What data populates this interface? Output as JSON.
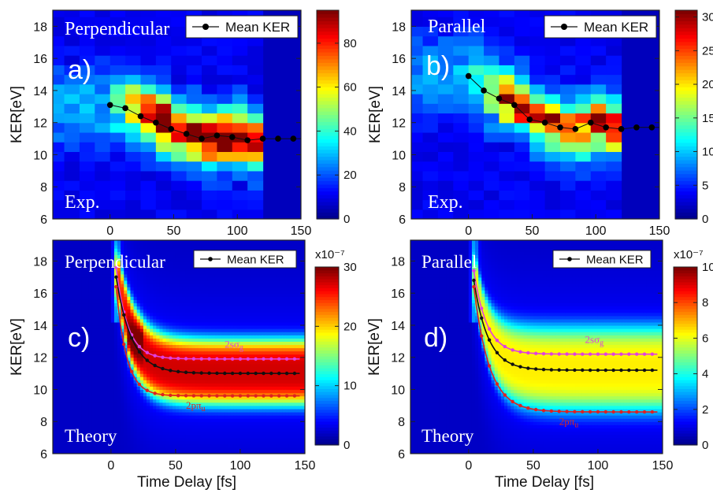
{
  "colormap": [
    "#00008f",
    "#0000ff",
    "#0080ff",
    "#00ffff",
    "#80ff80",
    "#ffff00",
    "#ff8000",
    "#ff0000",
    "#800000"
  ],
  "chart_data": [
    {
      "type": "heatmap",
      "panel_label": "a)",
      "orientation_label": "Perpendicular",
      "source_label": "Exp.",
      "legend_label": "Mean KER",
      "ylabel": "KER[eV]",
      "xlabel": "",
      "xlim": [
        -45,
        150
      ],
      "ylim": [
        6,
        19
      ],
      "x_ticks": [
        "0",
        "50",
        "100",
        "150"
      ],
      "y_ticks": [
        "6",
        "8",
        "10",
        "12",
        "14",
        "16",
        "18"
      ],
      "colorbar": {
        "range": [
          0,
          95
        ],
        "ticks": [
          "0",
          "20",
          "40",
          "60",
          "80"
        ],
        "exponent_label": ""
      },
      "mean_ker": {
        "x": [
          0,
          12,
          24,
          36,
          48,
          60,
          72,
          84,
          96,
          108,
          120,
          132,
          144
        ],
        "y": [
          13.1,
          12.9,
          12.4,
          12.0,
          11.6,
          11.3,
          11.0,
          11.2,
          11.1,
          10.9,
          11.0,
          11.0,
          11.0
        ]
      }
    },
    {
      "type": "heatmap",
      "panel_label": "b)",
      "orientation_label": "Parallel",
      "source_label": "Exp.",
      "legend_label": "Mean KER",
      "ylabel": "KER[eV]",
      "xlabel": "",
      "xlim": [
        -45,
        150
      ],
      "ylim": [
        6,
        19
      ],
      "x_ticks": [
        "0",
        "50",
        "100",
        "150"
      ],
      "y_ticks": [
        "6",
        "8",
        "10",
        "12",
        "14",
        "16",
        "18"
      ],
      "colorbar": {
        "range": [
          0,
          31
        ],
        "ticks": [
          "0",
          "5",
          "10",
          "15",
          "20",
          "25",
          "30"
        ],
        "exponent_label": ""
      },
      "mean_ker": {
        "x": [
          0,
          12,
          24,
          36,
          48,
          60,
          72,
          84,
          96,
          108,
          120,
          132,
          144
        ],
        "y": [
          14.9,
          14.0,
          13.5,
          13.1,
          12.2,
          12.0,
          11.7,
          11.6,
          12.0,
          11.7,
          11.6,
          11.7,
          11.7
        ]
      }
    },
    {
      "type": "heatmap",
      "panel_label": "c)",
      "orientation_label": "Perpendicular",
      "source_label": "Theory",
      "legend_label": "Mean KER",
      "ylabel": "KER[eV]",
      "xlabel": "Time Delay [fs]",
      "xlim": [
        -45,
        150
      ],
      "ylim": [
        6,
        19.3
      ],
      "x_ticks": [
        "0",
        "50",
        "100",
        "150"
      ],
      "y_ticks": [
        "6",
        "8",
        "10",
        "12",
        "14",
        "16",
        "18"
      ],
      "colorbar": {
        "range": [
          0,
          30
        ],
        "ticks": [
          "0",
          "10",
          "20",
          "30"
        ],
        "exponent_label": "x10⁻⁷"
      },
      "series": [
        {
          "name": "2sσg",
          "color": "#e040e0",
          "asymptote": 11.9,
          "start": 17.6,
          "tau": 9
        },
        {
          "name": "",
          "color": "#111111",
          "asymptote": 11.0,
          "start": 17.0,
          "tau": 12
        },
        {
          "name": "2pπu",
          "color": "#e02020",
          "asymptote": 9.6,
          "start": 16.4,
          "tau": 8
        }
      ]
    },
    {
      "type": "heatmap",
      "panel_label": "d)",
      "orientation_label": "Parallel",
      "source_label": "Theory",
      "legend_label": "Mean KER",
      "ylabel": "KER[eV]",
      "xlabel": "Time Delay [fs]",
      "xlim": [
        -45,
        150
      ],
      "ylim": [
        6,
        19.3
      ],
      "x_ticks": [
        "0",
        "50",
        "100",
        "150"
      ],
      "y_ticks": [
        "6",
        "8",
        "10",
        "12",
        "14",
        "16",
        "18"
      ],
      "colorbar": {
        "range": [
          0,
          10
        ],
        "ticks": [
          "0",
          "2",
          "4",
          "6",
          "8",
          "10"
        ],
        "exponent_label": "x10⁻⁷"
      },
      "series": [
        {
          "name": "2sσg",
          "color": "#e040e0",
          "asymptote": 12.2,
          "start": 17.4,
          "tau": 10
        },
        {
          "name": "",
          "color": "#111111",
          "asymptote": 11.2,
          "start": 16.8,
          "tau": 11
        },
        {
          "name": "2pπu",
          "color": "#e02020",
          "asymptote": 8.6,
          "start": 16.4,
          "tau": 12
        }
      ]
    }
  ]
}
